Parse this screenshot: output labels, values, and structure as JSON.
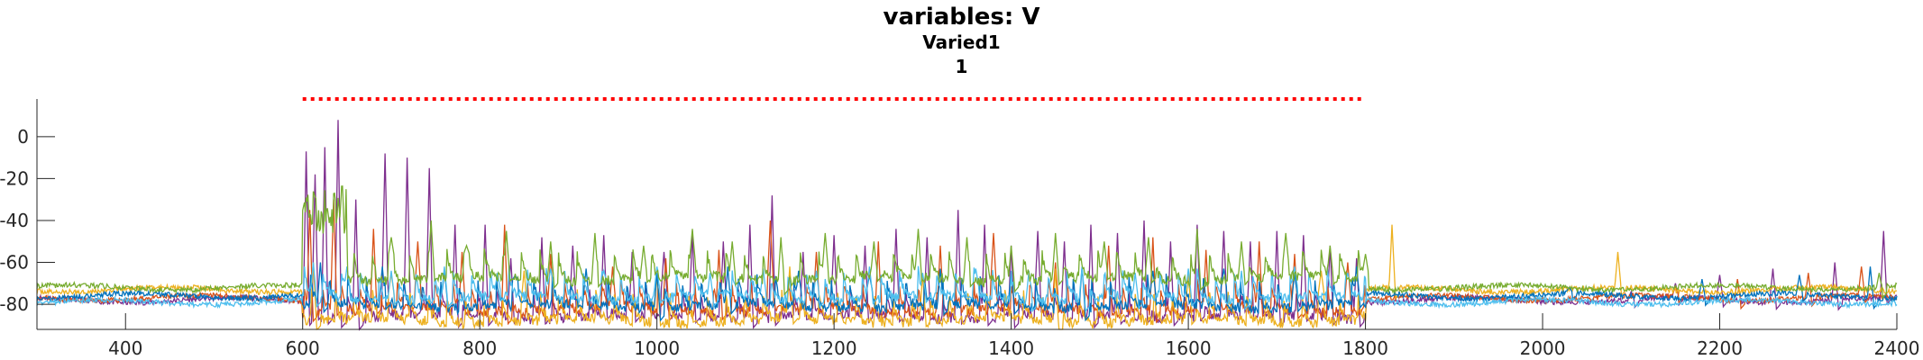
{
  "chart_data": {
    "type": "line",
    "title": "variables: V",
    "subtitle_1": "Varied1",
    "subtitle_2": "1",
    "xlabel": "",
    "ylabel": "",
    "xlim": [
      300,
      2400
    ],
    "ylim": [
      -92,
      18
    ],
    "xticks": [
      400,
      600,
      800,
      1000,
      1200,
      1400,
      1600,
      1800,
      2000,
      2200,
      2400
    ],
    "yticks": [
      0,
      -20,
      -40,
      -60,
      -80
    ],
    "stimulus_bar": {
      "x_start": 600,
      "x_end": 1800,
      "y": 18,
      "color": "#ff0000",
      "style": "dotted"
    },
    "grid": false,
    "legend": "none",
    "series": [
      {
        "color": "#7E2F8E",
        "baseline": -78,
        "stim_baseline": -83,
        "seed": 11,
        "spikes": [
          [
            604,
            -7
          ],
          [
            614,
            -18
          ],
          [
            625,
            -5
          ],
          [
            640,
            8
          ],
          [
            660,
            -30
          ],
          [
            693,
            -8
          ],
          [
            718,
            -10
          ],
          [
            743,
            -15
          ],
          [
            772,
            -42
          ],
          [
            806,
            -42
          ],
          [
            835,
            -58
          ],
          [
            870,
            -48
          ],
          [
            905,
            -52
          ],
          [
            940,
            -47
          ],
          [
            972,
            -55
          ],
          [
            1008,
            -55
          ],
          [
            1040,
            -45
          ],
          [
            1075,
            -50
          ],
          [
            1105,
            -42
          ],
          [
            1130,
            -28
          ],
          [
            1165,
            -55
          ],
          [
            1200,
            -47
          ],
          [
            1235,
            -52
          ],
          [
            1270,
            -44
          ],
          [
            1305,
            -48
          ],
          [
            1340,
            -35
          ],
          [
            1370,
            -42
          ],
          [
            1400,
            -52
          ],
          [
            1430,
            -45
          ],
          [
            1460,
            -50
          ],
          [
            1490,
            -42
          ],
          [
            1520,
            -46
          ],
          [
            1550,
            -40
          ],
          [
            1580,
            -50
          ],
          [
            1610,
            -42
          ],
          [
            1640,
            -45
          ],
          [
            1670,
            -50
          ],
          [
            1700,
            -45
          ],
          [
            1730,
            -47
          ],
          [
            1760,
            -52
          ],
          [
            1790,
            -58
          ],
          [
            2100,
            -74
          ],
          [
            2150,
            -70
          ],
          [
            2200,
            -66
          ],
          [
            2260,
            -63
          ],
          [
            2330,
            -60
          ],
          [
            2385,
            -45
          ]
        ]
      },
      {
        "color": "#D95319",
        "baseline": -77,
        "stim_baseline": -80,
        "seed": 23,
        "spikes": [
          [
            608,
            -35
          ],
          [
            635,
            -30
          ],
          [
            680,
            -44
          ],
          [
            730,
            -50
          ],
          [
            780,
            -55
          ],
          [
            828,
            -42
          ],
          [
            880,
            -56
          ],
          [
            950,
            -62
          ],
          [
            1010,
            -58
          ],
          [
            1070,
            -54
          ],
          [
            1128,
            -40
          ],
          [
            1180,
            -55
          ],
          [
            1250,
            -50
          ],
          [
            1320,
            -52
          ],
          [
            1380,
            -46
          ],
          [
            1450,
            -60
          ],
          [
            1510,
            -52
          ],
          [
            1560,
            -48
          ],
          [
            1620,
            -54
          ],
          [
            1680,
            -50
          ],
          [
            1720,
            -56
          ],
          [
            1780,
            -60
          ],
          [
            2150,
            -72
          ],
          [
            2220,
            -68
          ],
          [
            2300,
            -65
          ],
          [
            2360,
            -62
          ]
        ]
      },
      {
        "color": "#EDB120",
        "baseline": -73,
        "stim_baseline": -85,
        "seed": 37,
        "spikes": [
          [
            1830,
            -42
          ],
          [
            2085,
            -55
          ],
          [
            612,
            -60
          ],
          [
            700,
            -65
          ],
          [
            850,
            -64
          ],
          [
            1000,
            -66
          ],
          [
            1150,
            -62
          ],
          [
            1300,
            -66
          ],
          [
            1450,
            -63
          ],
          [
            1600,
            -65
          ],
          [
            1750,
            -64
          ]
        ]
      },
      {
        "color": "#0072BD",
        "baseline": -76,
        "stim_baseline": -78,
        "seed": 51,
        "spikes": [
          [
            620,
            -60
          ],
          [
            690,
            -62
          ],
          [
            760,
            -64
          ],
          [
            840,
            -66
          ],
          [
            920,
            -63
          ],
          [
            1000,
            -65
          ],
          [
            1080,
            -62
          ],
          [
            1160,
            -64
          ],
          [
            1240,
            -66
          ],
          [
            1320,
            -63
          ],
          [
            1400,
            -65
          ],
          [
            1480,
            -62
          ],
          [
            1560,
            -64
          ],
          [
            1640,
            -63
          ],
          [
            1720,
            -65
          ],
          [
            1790,
            -62
          ],
          [
            2030,
            -72
          ],
          [
            2180,
            -68
          ],
          [
            2290,
            -66
          ],
          [
            2370,
            -62
          ]
        ]
      },
      {
        "color": "#4DBEEE",
        "baseline": -79,
        "stim_baseline": -74,
        "seed": 67,
        "spikes": [
          [
            612,
            -60
          ],
          [
            650,
            -62
          ],
          [
            700,
            -64
          ],
          [
            760,
            -62
          ],
          [
            820,
            -65
          ],
          [
            880,
            -63
          ],
          [
            940,
            -64
          ],
          [
            1000,
            -62
          ],
          [
            1060,
            -65
          ],
          [
            1120,
            -63
          ],
          [
            1180,
            -64
          ],
          [
            1240,
            -62
          ],
          [
            1300,
            -65
          ],
          [
            1360,
            -63
          ],
          [
            1420,
            -64
          ],
          [
            1480,
            -62
          ],
          [
            1540,
            -65
          ],
          [
            1600,
            -63
          ],
          [
            1660,
            -64
          ],
          [
            1720,
            -62
          ],
          [
            1780,
            -65
          ]
        ]
      },
      {
        "color": "#77AC30",
        "baseline": -72,
        "stim_baseline": -65,
        "seed": 83,
        "burst": [
          600,
          650,
          -35
        ],
        "spikes": [
          [
            700,
            -48
          ],
          [
            745,
            -40
          ],
          [
            785,
            -52
          ],
          [
            830,
            -45
          ],
          [
            880,
            -50
          ],
          [
            930,
            -46
          ],
          [
            985,
            -52
          ],
          [
            1040,
            -44
          ],
          [
            1085,
            -50
          ],
          [
            1140,
            -48
          ],
          [
            1190,
            -46
          ],
          [
            1245,
            -50
          ],
          [
            1295,
            -44
          ],
          [
            1350,
            -48
          ],
          [
            1400,
            -52
          ],
          [
            1450,
            -46
          ],
          [
            1505,
            -50
          ],
          [
            1555,
            -48
          ],
          [
            1610,
            -44
          ],
          [
            1660,
            -50
          ],
          [
            1710,
            -46
          ],
          [
            1760,
            -52
          ],
          [
            1800,
            -56
          ],
          [
            2380,
            -65
          ]
        ]
      }
    ]
  }
}
